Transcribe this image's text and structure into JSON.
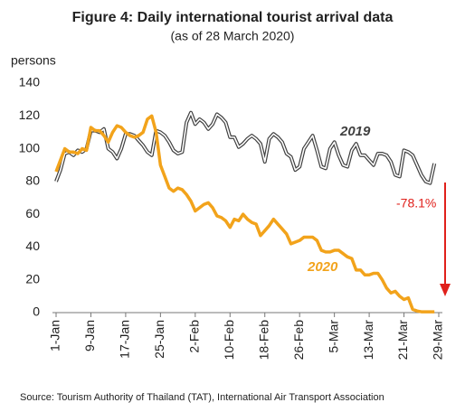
{
  "chart_data": {
    "type": "line",
    "title": "Figure 4: Daily international tourist arrival data",
    "subtitle": "(as of 28 March 2020)",
    "y_label": "persons",
    "source": "Source: Tourism Authority of Thailand (TAT), International Air Transport Association",
    "annotations": [
      "2019",
      "2020",
      "-78.1%"
    ],
    "categories": [
      "1-Jan",
      null,
      null,
      null,
      null,
      null,
      null,
      null,
      "9-Jan",
      null,
      null,
      null,
      null,
      null,
      null,
      null,
      "17-Jan",
      null,
      null,
      null,
      null,
      null,
      null,
      null,
      "25-Jan",
      null,
      null,
      null,
      null,
      null,
      null,
      null,
      "2-Feb",
      null,
      null,
      null,
      null,
      null,
      null,
      null,
      "10-Feb",
      null,
      null,
      null,
      null,
      null,
      null,
      null,
      "18-Feb",
      null,
      null,
      null,
      null,
      null,
      null,
      null,
      "26-Feb",
      null,
      null,
      null,
      null,
      null,
      null,
      null,
      "5-Mar",
      null,
      null,
      null,
      null,
      null,
      null,
      null,
      "13-Mar",
      null,
      null,
      null,
      null,
      null,
      null,
      null,
      "21-Mar",
      null,
      null,
      null,
      null,
      null,
      null,
      null,
      "29-Mar"
    ],
    "series": [
      {
        "name": "2019",
        "color": "#404040",
        "values": [
          80,
          87,
          97,
          98,
          96,
          99,
          98,
          100,
          111,
          111,
          110,
          112,
          100,
          98,
          94,
          100,
          109,
          109,
          108,
          105,
          102,
          98,
          96,
          111,
          110,
          108,
          104,
          99,
          97,
          98,
          116,
          122,
          115,
          118,
          116,
          112,
          115,
          121,
          119,
          116,
          107,
          107,
          101,
          103,
          106,
          108,
          106,
          103,
          92,
          106,
          109,
          107,
          104,
          97,
          95,
          87,
          89,
          100,
          104,
          108,
          99,
          89,
          88,
          100,
          104,
          96,
          90,
          89,
          99,
          103,
          96,
          96,
          93,
          90,
          97,
          97,
          96,
          92,
          84,
          83,
          99,
          98,
          96,
          90,
          84,
          80,
          79,
          91,
          null
        ]
      },
      {
        "name": "2020",
        "color": "#f2a31b",
        "values": [
          86,
          93,
          100,
          98,
          98,
          97,
          100,
          99,
          113,
          111,
          111,
          108,
          104,
          110,
          114,
          113,
          110,
          108,
          107,
          108,
          110,
          118,
          120,
          110,
          90,
          83,
          76,
          74,
          76,
          75,
          72,
          68,
          62,
          64,
          66,
          67,
          64,
          59,
          58,
          56,
          52,
          57,
          56,
          60,
          57,
          55,
          54,
          47,
          50,
          53,
          57,
          54,
          51,
          48,
          42,
          43,
          44,
          46,
          46,
          46,
          44,
          38,
          37,
          37,
          38,
          38,
          36,
          34,
          33,
          26,
          26,
          23,
          23,
          24,
          24,
          20,
          15,
          12,
          13,
          10,
          8,
          9,
          2,
          1,
          0.5,
          0.5,
          0.5,
          0.5,
          null
        ]
      }
    ],
    "ylim": [
      0,
      140
    ],
    "yticks": [
      0,
      20,
      40,
      60,
      80,
      100,
      120,
      140
    ]
  }
}
